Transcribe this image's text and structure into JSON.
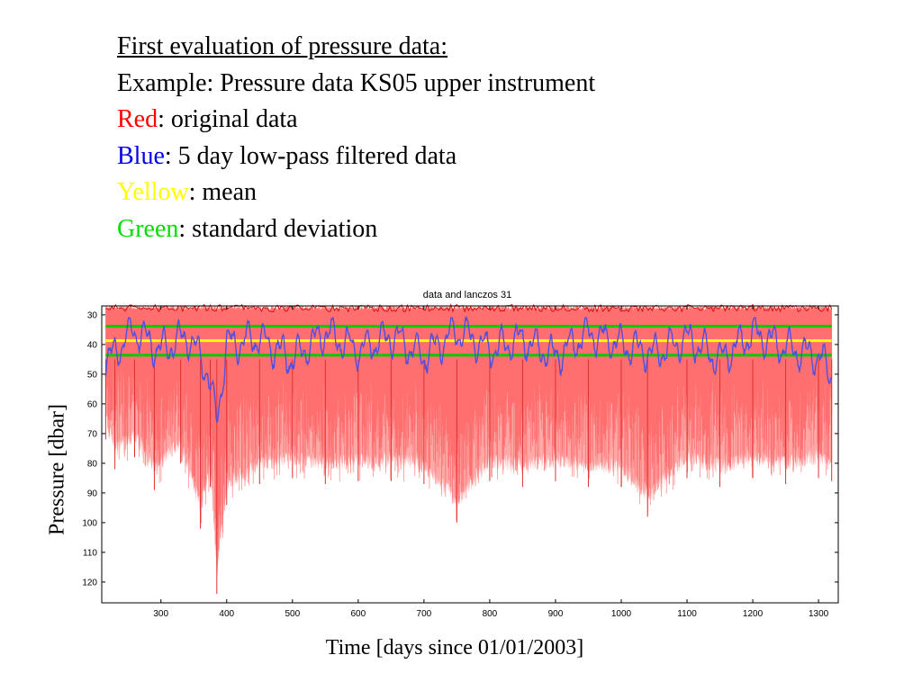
{
  "slide": {
    "heading": "First evaluation of pressure data:",
    "example": "Example: Pressure data KS05 upper instrument",
    "legend": [
      {
        "word": "Red",
        "rest": ": original data",
        "color": "#ff0000"
      },
      {
        "word": "Blue",
        "rest": ": 5 day low-pass filtered data",
        "color": "#0000ee"
      },
      {
        "word": "Yellow",
        "rest": ": mean",
        "color": "#ffff00"
      },
      {
        "word": "Green",
        "rest": ": standard deviation",
        "color": "#00dd00"
      }
    ]
  },
  "chart_data": {
    "type": "line",
    "title": "data and lanczos 31",
    "xlabel": "Time [days since 01/01/2003]",
    "ylabel": "Pressure [dbar]",
    "xlim": [
      210,
      1330
    ],
    "ylim": [
      27,
      127
    ],
    "y_reversed": true,
    "grid": false,
    "xticks": [
      300,
      400,
      500,
      600,
      700,
      800,
      900,
      1000,
      1100,
      1200,
      1300
    ],
    "yticks": [
      30,
      40,
      50,
      60,
      70,
      80,
      90,
      100,
      110,
      120
    ],
    "series": [
      {
        "color": "#ff6060",
        "x_range": [
          216,
          1320
        ],
        "min_y": 26,
        "max_y": 124,
        "approx_trough_envelope": [
          [
            216,
            72
          ],
          [
            230,
            82
          ],
          [
            260,
            78
          ],
          [
            290,
            89
          ],
          [
            330,
            80
          ],
          [
            360,
            102
          ],
          [
            375,
            88
          ],
          [
            385,
            124
          ],
          [
            400,
            94
          ],
          [
            450,
            87
          ],
          [
            500,
            85
          ],
          [
            550,
            87
          ],
          [
            600,
            86
          ],
          [
            650,
            86
          ],
          [
            700,
            87
          ],
          [
            750,
            100
          ],
          [
            800,
            86
          ],
          [
            850,
            88
          ],
          [
            900,
            86
          ],
          [
            950,
            88
          ],
          [
            1000,
            88
          ],
          [
            1040,
            98
          ],
          [
            1100,
            85
          ],
          [
            1150,
            88
          ],
          [
            1200,
            85
          ],
          [
            1250,
            87
          ],
          [
            1300,
            85
          ],
          [
            1320,
            86
          ]
        ]
      },
      {
        "color": "#5050e0",
        "x_range": [
          216,
          1320
        ],
        "min_y": 31,
        "max_y": 66,
        "approx_points": [
          [
            216,
            46
          ],
          [
            240,
            40
          ],
          [
            260,
            35
          ],
          [
            300,
            42
          ],
          [
            340,
            37
          ],
          [
            370,
            48
          ],
          [
            385,
            66
          ],
          [
            400,
            40
          ],
          [
            450,
            38
          ],
          [
            500,
            45
          ],
          [
            550,
            36
          ],
          [
            600,
            42
          ],
          [
            650,
            37
          ],
          [
            700,
            44
          ],
          [
            750,
            35
          ],
          [
            800,
            42
          ],
          [
            850,
            38
          ],
          [
            900,
            44
          ],
          [
            950,
            36
          ],
          [
            1000,
            40
          ],
          [
            1050,
            43
          ],
          [
            1100,
            38
          ],
          [
            1150,
            45
          ],
          [
            1200,
            36
          ],
          [
            1250,
            41
          ],
          [
            1300,
            44
          ],
          [
            1320,
            50
          ]
        ]
      },
      {
        "color": "#ffff00",
        "constant_y": 38.7
      },
      {
        "color": "#00cc00",
        "constant_y": [
          33.8,
          43.6
        ]
      }
    ]
  }
}
